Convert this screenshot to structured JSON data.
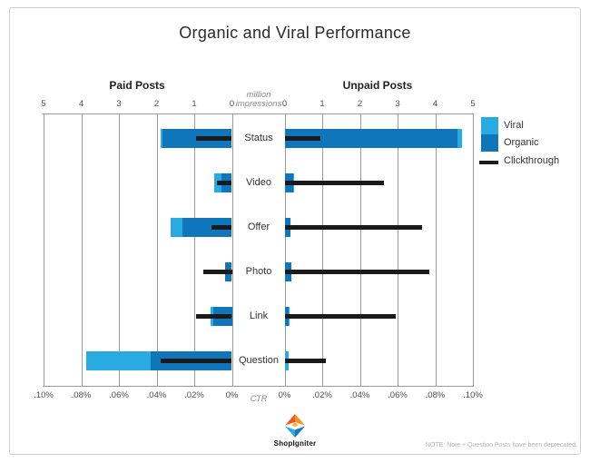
{
  "chart_data": {
    "type": "bar",
    "orientation": "horizontal-diverging-stacked",
    "title": "Organic and Viral Performance",
    "left_header": "Paid Posts",
    "right_header": "Unpaid Posts",
    "impressions_unit": "million impressions",
    "ctr_unit": "CTR",
    "impressions_axis": {
      "ticks_left": [
        "5",
        "4",
        "3",
        "2",
        "1",
        "0"
      ],
      "ticks_right": [
        "0",
        "1",
        "2",
        "3",
        "4",
        "5"
      ],
      "max_million": 5
    },
    "ctr_axis": {
      "ticks_left": [
        ".10%",
        ".08%",
        ".06%",
        ".04%",
        ".02%",
        "0%"
      ],
      "ticks_right": [
        "0%",
        ".02%",
        ".04%",
        ".06%",
        ".08%",
        ".10%"
      ],
      "max_percent": 0.1
    },
    "legend": [
      {
        "label": "Viral",
        "color": "#29ABE2",
        "swatch": "square"
      },
      {
        "label": "Organic",
        "color": "#0F76BC",
        "swatch": "square"
      },
      {
        "label": "Clickthrough",
        "color": "#1A1A1A",
        "swatch": "line"
      }
    ],
    "categories": [
      "Status",
      "Video",
      "Offer",
      "Photo",
      "Link",
      "Question"
    ],
    "rows": [
      {
        "category": "Status",
        "paid": {
          "viral_million": 0.06,
          "organic_million": 1.84,
          "ctr_percent": 0.019
        },
        "unpaid": {
          "viral_million": 0.12,
          "organic_million": 4.6,
          "ctr_percent": 0.019
        }
      },
      {
        "category": "Video",
        "paid": {
          "viral_million": 0.18,
          "organic_million": 0.28,
          "ctr_percent": 0.008
        },
        "unpaid": {
          "viral_million": 0.02,
          "organic_million": 0.22,
          "ctr_percent": 0.053
        }
      },
      {
        "category": "Offer",
        "paid": {
          "viral_million": 0.3,
          "organic_million": 1.32,
          "ctr_percent": 0.011
        },
        "unpaid": {
          "viral_million": 0.0,
          "organic_million": 0.15,
          "ctr_percent": 0.073
        }
      },
      {
        "category": "Photo",
        "paid": {
          "viral_million": 0.0,
          "organic_million": 0.17,
          "ctr_percent": 0.015
        },
        "unpaid": {
          "viral_million": 0.0,
          "organic_million": 0.17,
          "ctr_percent": 0.077
        }
      },
      {
        "category": "Link",
        "paid": {
          "viral_million": 0.06,
          "organic_million": 0.5,
          "ctr_percent": 0.019
        },
        "unpaid": {
          "viral_million": 0.02,
          "organic_million": 0.1,
          "ctr_percent": 0.059
        }
      },
      {
        "category": "Question",
        "paid": {
          "viral_million": 1.7,
          "organic_million": 2.16,
          "ctr_percent": 0.038
        },
        "unpaid": {
          "viral_million": 0.1,
          "organic_million": 0.0,
          "ctr_percent": 0.022
        }
      }
    ],
    "colors": {
      "viral": "#29ABE2",
      "organic": "#0F76BC",
      "clickthrough": "#1A1A1A",
      "grid": "#9B9B9B"
    }
  },
  "footer": {
    "brand": "ShopIgniter",
    "note": "NOTE: Note + Question Posts have been deprecated."
  }
}
